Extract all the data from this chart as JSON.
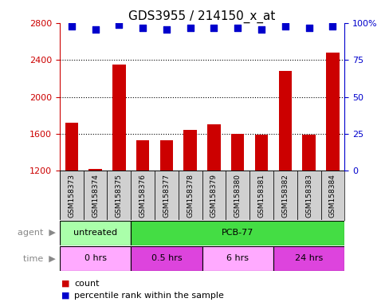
{
  "title": "GDS3955 / 214150_x_at",
  "samples": [
    "GSM158373",
    "GSM158374",
    "GSM158375",
    "GSM158376",
    "GSM158377",
    "GSM158378",
    "GSM158379",
    "GSM158380",
    "GSM158381",
    "GSM158382",
    "GSM158383",
    "GSM158384"
  ],
  "counts": [
    1720,
    1215,
    2350,
    1530,
    1530,
    1640,
    1700,
    1600,
    1590,
    2280,
    1590,
    2480
  ],
  "percentiles": [
    98,
    96,
    99,
    97,
    96,
    97,
    97,
    97,
    96,
    98,
    97,
    98
  ],
  "ylim_left": [
    1200,
    2800
  ],
  "ylim_right": [
    0,
    100
  ],
  "yticks_left": [
    1200,
    1600,
    2000,
    2400,
    2800
  ],
  "yticks_right": [
    0,
    25,
    50,
    75,
    100
  ],
  "bar_color": "#cc0000",
  "dot_color": "#0000cc",
  "bg_color": "#ffffff",
  "agent_groups": [
    {
      "label": "untreated",
      "start": 0,
      "end": 3,
      "color": "#aaffaa"
    },
    {
      "label": "PCB-77",
      "start": 3,
      "end": 12,
      "color": "#44dd44"
    }
  ],
  "time_groups": [
    {
      "label": "0 hrs",
      "start": 0,
      "end": 3,
      "color": "#ffaaff"
    },
    {
      "label": "0.5 hrs",
      "start": 3,
      "end": 6,
      "color": "#dd44dd"
    },
    {
      "label": "6 hrs",
      "start": 6,
      "end": 9,
      "color": "#ffaaff"
    },
    {
      "label": "24 hrs",
      "start": 9,
      "end": 12,
      "color": "#dd44dd"
    }
  ],
  "left_color": "#cc0000",
  "right_color": "#0000cc",
  "title_fontsize": 11,
  "tick_fontsize": 8,
  "legend_fontsize": 8,
  "bar_width": 0.55,
  "dot_size": 35,
  "sample_label_fontsize": 6.5,
  "label_bg": "#d0d0d0",
  "grid_lines": [
    1600,
    2000,
    2400
  ]
}
